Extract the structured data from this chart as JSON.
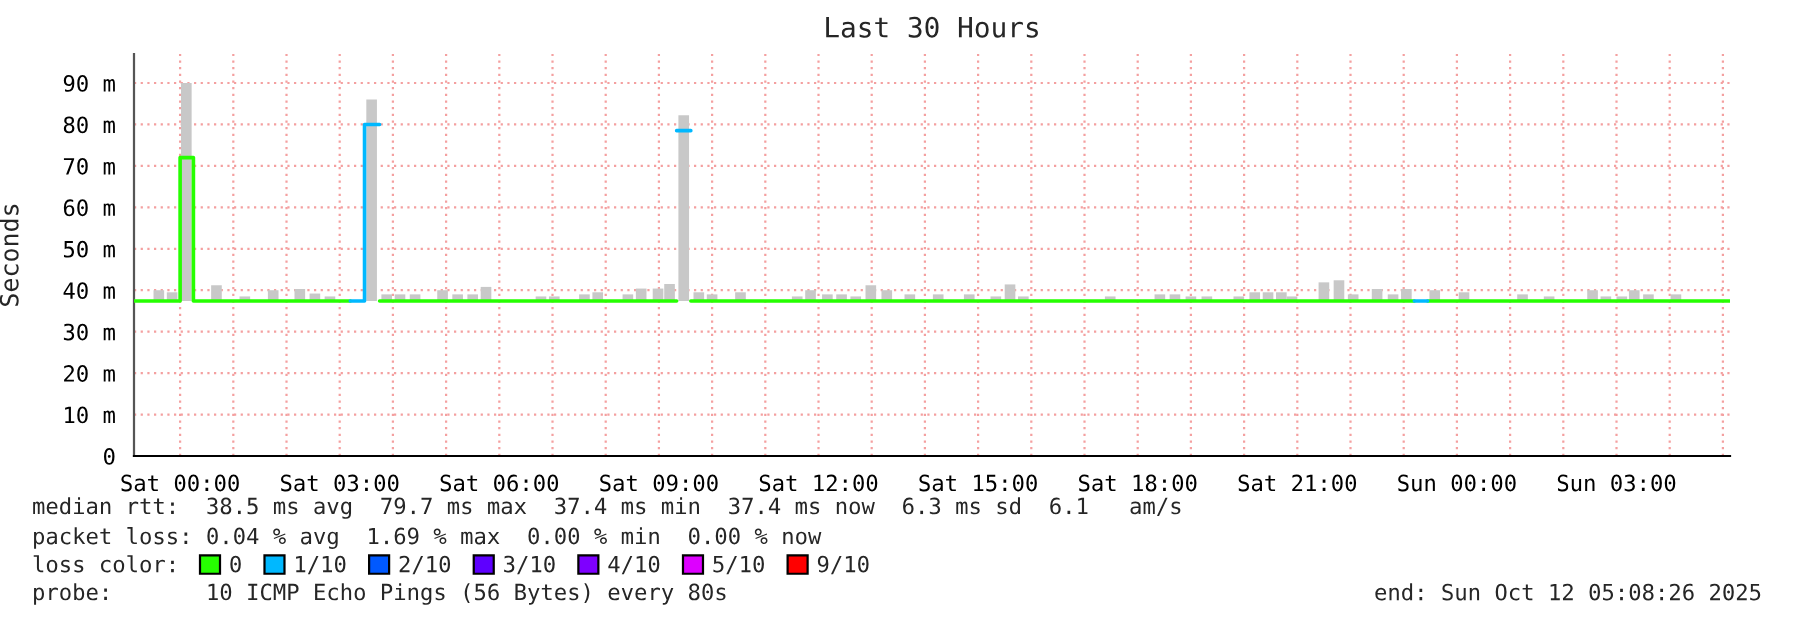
{
  "chart_data": {
    "type": "step",
    "title": "Last 30 Hours",
    "ylabel": "Seconds",
    "legend_title": "loss color:",
    "legend": "bottom",
    "grid": true,
    "xlim": [
      "2025-10-10T23:08",
      "2025-10-12T05:08"
    ],
    "ylim": [
      0,
      97
    ],
    "xticks": [
      {
        "value": "2025-10-11T00:00",
        "label": "Sat 00:00"
      },
      {
        "value": "2025-10-11T01:00",
        "label": null
      },
      {
        "value": "2025-10-11T02:00",
        "label": null
      },
      {
        "value": "2025-10-11T03:00",
        "label": "Sat 03:00"
      },
      {
        "value": "2025-10-11T04:00",
        "label": null
      },
      {
        "value": "2025-10-11T05:00",
        "label": null
      },
      {
        "value": "2025-10-11T06:00",
        "label": "Sat 06:00"
      },
      {
        "value": "2025-10-11T07:00",
        "label": null
      },
      {
        "value": "2025-10-11T08:00",
        "label": null
      },
      {
        "value": "2025-10-11T09:00",
        "label": "Sat 09:00"
      },
      {
        "value": "2025-10-11T10:00",
        "label": null
      },
      {
        "value": "2025-10-11T11:00",
        "label": null
      },
      {
        "value": "2025-10-11T12:00",
        "label": "Sat 12:00"
      },
      {
        "value": "2025-10-11T13:00",
        "label": null
      },
      {
        "value": "2025-10-11T14:00",
        "label": null
      },
      {
        "value": "2025-10-11T15:00",
        "label": "Sat 15:00"
      },
      {
        "value": "2025-10-11T16:00",
        "label": null
      },
      {
        "value": "2025-10-11T17:00",
        "label": null
      },
      {
        "value": "2025-10-11T18:00",
        "label": "Sat 18:00"
      },
      {
        "value": "2025-10-11T19:00",
        "label": null
      },
      {
        "value": "2025-10-11T20:00",
        "label": null
      },
      {
        "value": "2025-10-11T21:00",
        "label": "Sat 21:00"
      },
      {
        "value": "2025-10-11T22:00",
        "label": null
      },
      {
        "value": "2025-10-11T23:00",
        "label": null
      },
      {
        "value": "2025-10-12T00:00",
        "label": "Sun 00:00"
      },
      {
        "value": "2025-10-12T01:00",
        "label": null
      },
      {
        "value": "2025-10-12T02:00",
        "label": null
      },
      {
        "value": "2025-10-12T03:00",
        "label": "Sun 03:00"
      },
      {
        "value": "2025-10-12T04:00",
        "label": null
      },
      {
        "value": "2025-10-12T05:00",
        "label": null
      }
    ],
    "yticks": [
      0,
      {
        "value": 10,
        "label": "10 m"
      },
      {
        "value": 20,
        "label": "20 m"
      },
      {
        "value": 30,
        "label": "30 m"
      },
      {
        "value": 40,
        "label": "40 m"
      },
      {
        "value": 50,
        "label": "50 m"
      },
      {
        "value": 60,
        "label": "60 m"
      },
      {
        "value": 70,
        "label": "70 m"
      },
      {
        "value": 80,
        "label": "80 m"
      },
      {
        "value": 90,
        "label": "90 m"
      }
    ],
    "series": [
      {
        "type": "bar",
        "color": "#c8c8c8",
        "x": [
          "2025-10-10T23:36",
          "2025-10-10T23:51",
          "2025-10-11T00:07",
          "2025-10-11T00:41",
          "2025-10-11T01:13",
          "2025-10-11T01:45",
          "2025-10-11T02:15",
          "2025-10-11T02:32",
          "2025-10-11T02:49",
          "2025-10-11T03:36",
          "2025-10-11T03:53",
          "2025-10-11T04:08",
          "2025-10-11T04:25",
          "2025-10-11T04:56",
          "2025-10-11T05:13",
          "2025-10-11T05:30",
          "2025-10-11T05:45",
          "2025-10-11T06:47",
          "2025-10-11T07:02",
          "2025-10-11T07:36",
          "2025-10-11T07:51",
          "2025-10-11T08:25",
          "2025-10-11T08:40",
          "2025-10-11T08:59",
          "2025-10-11T09:12",
          "2025-10-11T09:28",
          "2025-10-11T09:45",
          "2025-10-11T10:00",
          "2025-10-11T10:32",
          "2025-10-11T11:36",
          "2025-10-11T11:51",
          "2025-10-11T12:10",
          "2025-10-11T12:26",
          "2025-10-11T12:42",
          "2025-10-11T12:59",
          "2025-10-11T13:17",
          "2025-10-11T13:43",
          "2025-10-11T14:15",
          "2025-10-11T14:50",
          "2025-10-11T15:20",
          "2025-10-11T15:36",
          "2025-10-11T15:51",
          "2025-10-11T17:29",
          "2025-10-11T18:25",
          "2025-10-11T18:42",
          "2025-10-11T19:00",
          "2025-10-11T19:18",
          "2025-10-11T19:54",
          "2025-10-11T20:12",
          "2025-10-11T20:27",
          "2025-10-11T20:42",
          "2025-10-11T20:54",
          "2025-10-11T21:30",
          "2025-10-11T21:47",
          "2025-10-11T22:03",
          "2025-10-11T22:30",
          "2025-10-11T22:48",
          "2025-10-11T23:03",
          "2025-10-11T23:35",
          "2025-10-12T00:08",
          "2025-10-12T01:14",
          "2025-10-12T01:44",
          "2025-10-12T02:33",
          "2025-10-12T02:48",
          "2025-10-12T03:06",
          "2025-10-12T03:20",
          "2025-10-12T03:36",
          "2025-10-12T04:07"
        ],
        "base": [
          37.4,
          37.4,
          37.4,
          37.4,
          37.4,
          37.4,
          37.4,
          37.4,
          37.4,
          37.4,
          37.4,
          37.4,
          37.4,
          37.4,
          37.4,
          37.4,
          37.4,
          37.4,
          37.4,
          37.4,
          37.4,
          37.4,
          37.4,
          37.4,
          37.4,
          37.4,
          37.4,
          37.4,
          37.4,
          37.4,
          37.4,
          37.4,
          37.4,
          37.4,
          37.4,
          37.4,
          37.4,
          37.4,
          37.4,
          37.4,
          37.4,
          37.4,
          37.4,
          37.4,
          37.4,
          37.4,
          37.4,
          37.4,
          37.4,
          37.4,
          37.4,
          37.4,
          37.4,
          37.4,
          37.4,
          37.4,
          37.4,
          37.4,
          37.4,
          37.4,
          37.4,
          37.4,
          37.4,
          37.4,
          37.4,
          37.4,
          37.4,
          37.4
        ],
        "values": [
          2.6,
          2.1,
          52.6,
          3.8,
          1.1,
          2.6,
          2.9,
          1.8,
          1.1,
          48.6,
          1.6,
          1.6,
          1.6,
          2.6,
          1.6,
          1.6,
          3.4,
          1.1,
          1.1,
          1.6,
          2.1,
          1.6,
          3.0,
          3.0,
          4.1,
          44.8,
          2.1,
          1.6,
          2.1,
          1.1,
          2.6,
          1.6,
          1.6,
          1.1,
          3.8,
          2.6,
          1.6,
          1.6,
          1.6,
          1.1,
          4.0,
          1.1,
          1.1,
          1.6,
          1.6,
          1.1,
          1.1,
          1.1,
          2.1,
          2.1,
          2.1,
          1.1,
          4.5,
          5.0,
          1.6,
          2.9,
          1.6,
          2.9,
          2.6,
          2.1,
          1.6,
          1.1,
          2.6,
          1.1,
          1.1,
          2.6,
          1.6,
          1.6
        ]
      },
      {
        "name": "0",
        "color": "#26ff00",
        "x": [
          "2025-10-10T23:08",
          "2025-10-11T00:00",
          "2025-10-11T00:15",
          "2025-10-11T03:12",
          "2025-10-11T03:45",
          "2025-10-11T09:20",
          "2025-10-11T09:36",
          "2025-10-11T23:12",
          "2025-10-11T23:27",
          "2025-10-12T05:08"
        ],
        "values": [
          37.4,
          72,
          37.4,
          null,
          37.4,
          null,
          37.4,
          null,
          37.4,
          37.4
        ]
      },
      {
        "name": "1/10",
        "color": "#00b8ff",
        "x": [
          "2025-10-11T03:12",
          "2025-10-11T03:28",
          "2025-10-11T03:45",
          "2025-10-11T09:20",
          "2025-10-11T09:36",
          "2025-10-11T23:12",
          "2025-10-11T23:27"
        ],
        "values": [
          37.4,
          80,
          null,
          78.5,
          null,
          37.4,
          37.4
        ]
      },
      {
        "name": "2/10",
        "color": "#0059ff"
      },
      {
        "name": "3/10",
        "color": "#5e00ff"
      },
      {
        "name": "4/10",
        "color": "#7e00ff"
      },
      {
        "name": "5/10",
        "color": "#dd00ff"
      },
      {
        "name": "9/10",
        "color": "#ff0000"
      }
    ],
    "annotations": [
      "median rtt:  38.5 ms avg  79.7 ms max  37.4 ms min  37.4 ms now  6.3 ms sd  6.1   am/s",
      "packet loss: 0.04 % avg  1.69 % max  0.00 % min  0.00 % now",
      "probe:       10 ICMP Echo Pings (56 Bytes) every 80s",
      "end: Sun Oct 12 05:08:26 2025"
    ]
  }
}
